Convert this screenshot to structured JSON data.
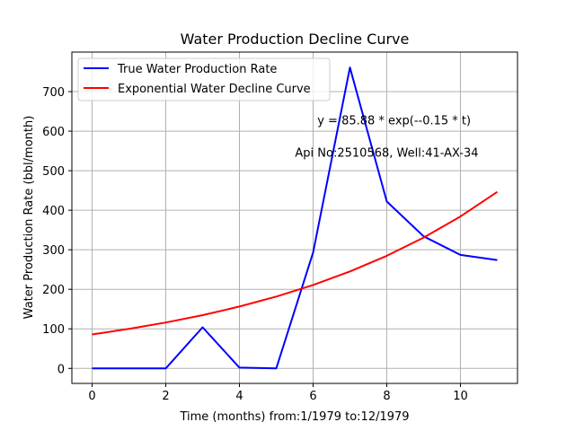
{
  "chart_data": {
    "type": "line",
    "title": "Water Production Decline Curve",
    "xlabel": "Time (months) from:1/1979 to:12/1979",
    "ylabel": "Water Production Rate (bbl/month)",
    "xlim": [
      -0.55,
      11.55
    ],
    "ylim": [
      -38,
      800
    ],
    "xticks": [
      0,
      2,
      4,
      6,
      8,
      10
    ],
    "yticks": [
      0,
      100,
      200,
      300,
      400,
      500,
      600,
      700
    ],
    "grid": true,
    "legend_position": "top-left",
    "series": [
      {
        "name": "True Water Production Rate",
        "color": "#0000ff",
        "x": [
          0,
          1,
          2,
          3,
          4,
          5,
          6,
          7,
          8,
          9,
          10,
          11
        ],
        "y": [
          0,
          0,
          0,
          104,
          2,
          0,
          293,
          761,
          422,
          334,
          287,
          274
        ]
      },
      {
        "name": "Exponential Water Decline Curve",
        "color": "#ff0000",
        "x": [
          0,
          1,
          2,
          3,
          4,
          5,
          6,
          7,
          8,
          9,
          10,
          11
        ],
        "y": [
          85.88,
          99.8,
          115.9,
          134.6,
          156.3,
          181.6,
          211.0,
          245.1,
          284.7,
          330.7,
          384.2,
          446.3
        ]
      }
    ],
    "annotations": [
      {
        "text": "y = 85.88 * exp(--0.15 * t)",
        "x": 8.2,
        "y": 628
      },
      {
        "text": "Api No:2510568, Well:41-AX-34",
        "x": 8.0,
        "y": 547
      }
    ]
  }
}
